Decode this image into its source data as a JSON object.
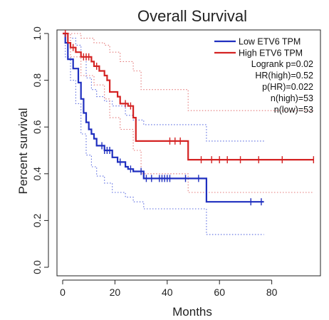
{
  "chart_data": {
    "type": "line",
    "title": "Overall Survival",
    "xlabel": "Months",
    "ylabel": "Percent survival",
    "xlim": [
      0,
      97
    ],
    "ylim": [
      0,
      1.0
    ],
    "x_ticks": [
      0,
      20,
      40,
      60,
      80
    ],
    "x_tick_labels": [
      "0",
      "20",
      "40",
      "60",
      "80"
    ],
    "y_ticks": [
      0.0,
      0.2,
      0.4,
      0.6,
      0.8,
      1.0
    ],
    "y_tick_labels": [
      "0.0",
      "0.2",
      "0.4",
      "0.6",
      "0.8",
      "1.0"
    ],
    "legend_position": "top-right",
    "series": [
      {
        "name": "Low ETV6 TPM",
        "color": "#1f2fbf",
        "steps": [
          [
            0,
            1.0
          ],
          [
            1,
            0.96
          ],
          [
            2,
            0.89
          ],
          [
            4,
            0.85
          ],
          [
            6,
            0.79
          ],
          [
            7,
            0.72
          ],
          [
            8,
            0.66
          ],
          [
            9,
            0.62
          ],
          [
            10,
            0.59
          ],
          [
            11,
            0.57
          ],
          [
            12,
            0.55
          ],
          [
            13,
            0.52
          ],
          [
            16,
            0.5
          ],
          [
            19,
            0.47
          ],
          [
            21,
            0.45
          ],
          [
            24,
            0.43
          ],
          [
            25,
            0.42
          ],
          [
            27,
            0.41
          ],
          [
            31,
            0.38
          ],
          [
            55,
            0.28
          ],
          [
            77,
            0.28
          ]
        ],
        "censor_x": [
          15,
          16,
          17,
          18,
          22,
          26,
          30,
          32,
          34,
          37,
          38,
          39,
          40,
          41,
          47,
          52,
          72,
          76
        ]
      },
      {
        "name": "High ETV6 TPM",
        "color": "#d42323",
        "steps": [
          [
            0,
            1.0
          ],
          [
            2,
            0.96
          ],
          [
            3,
            0.94
          ],
          [
            5,
            0.92
          ],
          [
            7,
            0.9
          ],
          [
            11,
            0.88
          ],
          [
            12,
            0.86
          ],
          [
            14,
            0.84
          ],
          [
            16,
            0.82
          ],
          [
            17,
            0.8
          ],
          [
            18,
            0.75
          ],
          [
            21,
            0.73
          ],
          [
            22,
            0.7
          ],
          [
            25,
            0.69
          ],
          [
            27,
            0.64
          ],
          [
            28,
            0.54
          ],
          [
            48,
            0.46
          ],
          [
            96,
            0.46
          ]
        ],
        "censor_x": [
          1,
          4,
          8,
          9,
          10,
          13,
          24,
          26,
          41,
          43,
          45,
          53,
          57,
          60,
          63,
          68,
          75,
          84,
          96
        ]
      }
    ],
    "ci_bands": [
      {
        "series": "Low ETV6 TPM",
        "color": "#5a6be0",
        "upper": [
          [
            0,
            1.0
          ],
          [
            1,
            1.0
          ],
          [
            3,
            0.98
          ],
          [
            5,
            0.95
          ],
          [
            7,
            0.9
          ],
          [
            9,
            0.81
          ],
          [
            11,
            0.76
          ],
          [
            13,
            0.73
          ],
          [
            16,
            0.71
          ],
          [
            19,
            0.69
          ],
          [
            24,
            0.65
          ],
          [
            27,
            0.63
          ],
          [
            31,
            0.61
          ],
          [
            55,
            0.54
          ],
          [
            77,
            0.54
          ]
        ],
        "lower": [
          [
            0,
            1.0
          ],
          [
            1,
            0.9
          ],
          [
            3,
            0.8
          ],
          [
            5,
            0.7
          ],
          [
            7,
            0.57
          ],
          [
            9,
            0.48
          ],
          [
            11,
            0.43
          ],
          [
            13,
            0.39
          ],
          [
            16,
            0.36
          ],
          [
            19,
            0.32
          ],
          [
            24,
            0.3
          ],
          [
            27,
            0.28
          ],
          [
            31,
            0.25
          ],
          [
            55,
            0.14
          ],
          [
            77,
            0.14
          ]
        ]
      },
      {
        "series": "High ETV6 TPM",
        "color": "#e47878",
        "upper": [
          [
            0,
            1.0
          ],
          [
            3,
            1.0
          ],
          [
            7,
            0.98
          ],
          [
            12,
            0.96
          ],
          [
            16,
            0.95
          ],
          [
            18,
            0.92
          ],
          [
            22,
            0.88
          ],
          [
            27,
            0.84
          ],
          [
            30,
            0.76
          ],
          [
            48,
            0.67
          ],
          [
            96,
            0.67
          ]
        ],
        "lower": [
          [
            0,
            1.0
          ],
          [
            3,
            0.9
          ],
          [
            7,
            0.82
          ],
          [
            12,
            0.78
          ],
          [
            16,
            0.72
          ],
          [
            18,
            0.64
          ],
          [
            22,
            0.59
          ],
          [
            27,
            0.5
          ],
          [
            30,
            0.4
          ],
          [
            48,
            0.32
          ],
          [
            96,
            0.32
          ]
        ]
      }
    ],
    "stats": [
      "Logrank p=0.02",
      "HR(high)=0.52",
      "p(HR)=0.022",
      "n(high)=53",
      "n(low)=53"
    ]
  }
}
